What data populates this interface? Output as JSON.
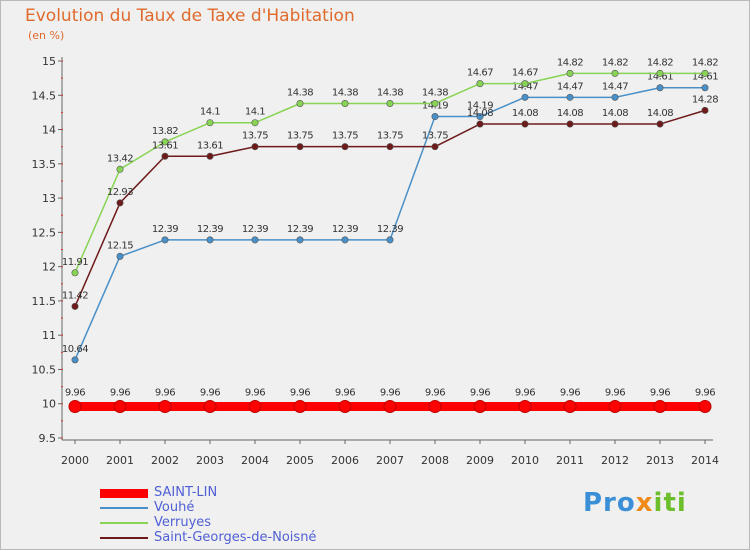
{
  "header": {
    "title": "Evolution du Taux de Taxe d'Habitation",
    "unit": "(en %)"
  },
  "chart_data": {
    "type": "line",
    "title": "Evolution du Taux de Taxe d'Habitation",
    "ylabel": "(en %)",
    "xlabel": "",
    "x": [
      "2000",
      "2001",
      "2002",
      "2003",
      "2004",
      "2005",
      "2006",
      "2007",
      "2008",
      "2009",
      "2010",
      "2011",
      "2012",
      "2013",
      "2014"
    ],
    "ylim": [
      9.5,
      15
    ],
    "yticks": [
      9.5,
      10,
      10.5,
      11,
      11.5,
      12,
      12.5,
      13,
      13.5,
      14,
      14.5,
      15
    ],
    "grid": false,
    "legend_position": "bottom-left",
    "series": [
      {
        "name": "SAINT-LIN",
        "color": "#ff0000",
        "values": [
          9.96,
          9.96,
          9.96,
          9.96,
          9.96,
          9.96,
          9.96,
          9.96,
          9.96,
          9.96,
          9.96,
          9.96,
          9.96,
          9.96,
          9.96
        ],
        "labels": [
          "9.96",
          "9.96",
          "9.96",
          "9.96",
          "9.96",
          "9.96",
          "9.96",
          "9.96",
          "9.96",
          "9.96",
          "9.96",
          "9.96",
          "9.96",
          "9.96",
          "9.96"
        ]
      },
      {
        "name": "Vouhé",
        "color": "#4a90c8",
        "values": [
          10.64,
          12.15,
          12.39,
          12.39,
          12.39,
          12.39,
          12.39,
          12.39,
          14.19,
          14.19,
          14.47,
          14.47,
          14.47,
          14.61,
          14.61
        ],
        "labels": [
          "10.64",
          "12.15",
          "12.39",
          "12.39",
          "12.39",
          "12.39",
          "12.39",
          "12.39",
          "14.19",
          "14.19",
          "14.47",
          "14.47",
          "14.47",
          "14.61",
          "14.61"
        ]
      },
      {
        "name": "Verruyes",
        "color": "#88d454",
        "values": [
          11.91,
          13.42,
          13.82,
          14.1,
          14.1,
          14.38,
          14.38,
          14.38,
          14.38,
          14.67,
          14.67,
          14.82,
          14.82,
          14.82,
          14.82
        ],
        "labels": [
          "11.91",
          "13.42",
          "13.82",
          "14.1",
          "14.1",
          "14.38",
          "14.38",
          "14.38",
          "14.38",
          "14.67",
          "14.67",
          "14.82",
          "14.82",
          "14.82",
          "14.82"
        ]
      },
      {
        "name": "Saint-Georges-de-Noisné",
        "color": "#6e1a1a",
        "values": [
          11.42,
          12.93,
          13.61,
          13.61,
          13.75,
          13.75,
          13.75,
          13.75,
          13.75,
          14.08,
          14.08,
          14.08,
          14.08,
          14.08,
          14.28
        ],
        "labels": [
          "11.42",
          "12.93",
          "13.61",
          "13.61",
          "13.75",
          "13.75",
          "13.75",
          "13.75",
          "13.75",
          "14.08",
          "14.08",
          "14.08",
          "14.08",
          "14.08",
          "14.28"
        ]
      }
    ]
  },
  "brand": {
    "p1": "Pro",
    "p2": "x",
    "p3": "iti"
  }
}
